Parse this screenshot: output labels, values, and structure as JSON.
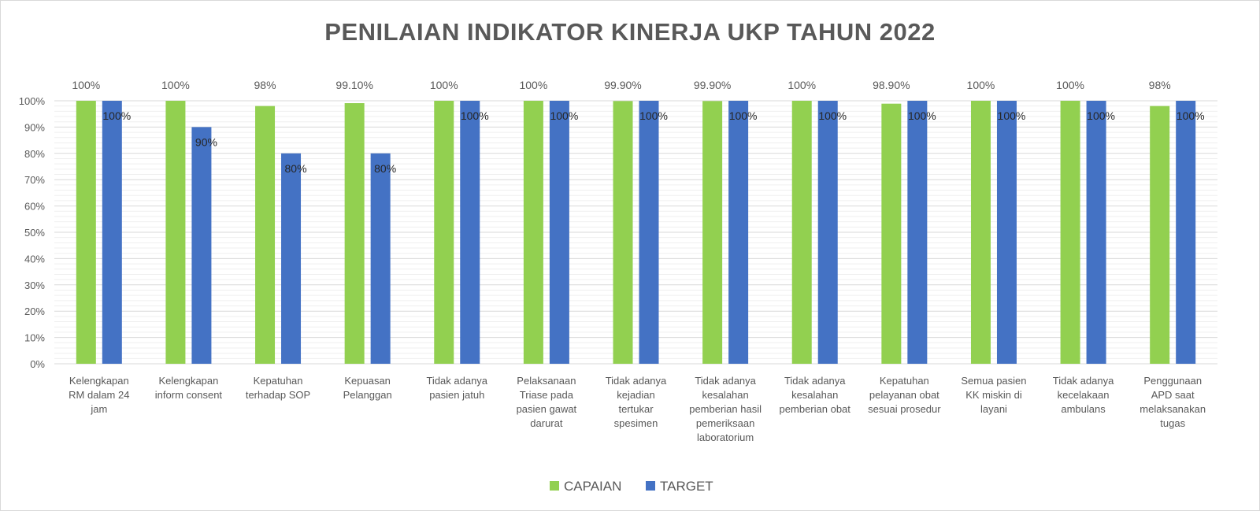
{
  "chart_data": {
    "type": "bar",
    "title": "PENILAIAN INDIKATOR KINERJA UKP TAHUN 2022",
    "xlabel": "",
    "ylabel": "",
    "ylim": [
      0,
      100
    ],
    "yticks": [
      "0%",
      "10%",
      "20%",
      "30%",
      "40%",
      "50%",
      "60%",
      "70%",
      "80%",
      "90%",
      "100%"
    ],
    "grid": true,
    "legend_position": "bottom",
    "categories": [
      [
        "Kelengkapan",
        "RM dalam 24",
        "jam"
      ],
      [
        "Kelengkapan",
        "inform consent"
      ],
      [
        "Kepatuhan",
        "terhadap SOP"
      ],
      [
        "Kepuasan",
        "Pelanggan"
      ],
      [
        "Tidak adanya",
        "pasien jatuh"
      ],
      [
        "Pelaksanaan",
        "Triase pada",
        "pasien gawat",
        "darurat"
      ],
      [
        "Tidak adanya",
        "kejadian",
        "tertukar",
        "spesimen"
      ],
      [
        "Tidak adanya",
        "kesalahan",
        "pemberian hasil",
        "pemeriksaan",
        "laboratorium"
      ],
      [
        "Tidak adanya",
        "kesalahan",
        "pemberian obat"
      ],
      [
        "Kepatuhan",
        "pelayanan obat",
        "sesuai prosedur"
      ],
      [
        "Semua pasien",
        "KK miskin di",
        "layani"
      ],
      [
        "Tidak adanya",
        "kecelakaan",
        "ambulans"
      ],
      [
        "Penggunaan",
        "APD saat",
        "melaksanakan",
        "tugas"
      ]
    ],
    "series": [
      {
        "name": "CAPAIAN",
        "color": "#92d050",
        "values": [
          100,
          100,
          98,
          99.1,
          100,
          100,
          99.9,
          99.9,
          100,
          98.9,
          100,
          100,
          98
        ],
        "labels": [
          "100%",
          "100%",
          "98%",
          "99.10%",
          "100%",
          "100%",
          "99.90%",
          "99.90%",
          "100%",
          "98.90%",
          "100%",
          "100%",
          "98%"
        ]
      },
      {
        "name": "TARGET",
        "color": "#4472c4",
        "values": [
          100,
          90,
          80,
          80,
          100,
          100,
          100,
          100,
          100,
          100,
          100,
          100,
          100
        ],
        "labels": [
          "100%",
          "90%",
          "80%",
          "80%",
          "100%",
          "100%",
          "100%",
          "100%",
          "100%",
          "100%",
          "100%",
          "100%",
          "100%"
        ]
      }
    ]
  }
}
